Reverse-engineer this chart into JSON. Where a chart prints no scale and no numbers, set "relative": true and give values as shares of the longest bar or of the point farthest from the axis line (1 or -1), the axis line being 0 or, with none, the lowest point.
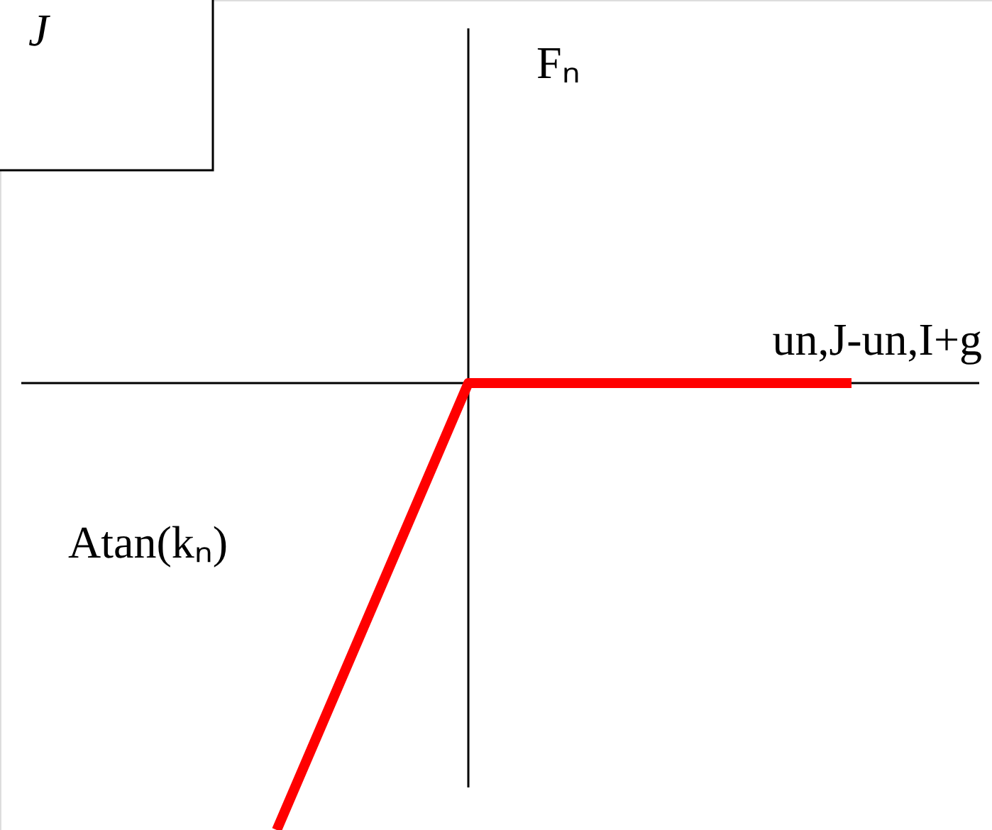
{
  "chart_data": {
    "type": "line",
    "relative": true,
    "categories": [
      null,
      null,
      null,
      null
    ],
    "values": [
      -1,
      0,
      0,
      0
    ],
    "color": "#ff0000",
    "xlabel": "un,J-un,I+g",
    "annotations": [
      "Fₙ",
      "Atan(kₙ)",
      "J"
    ]
  }
}
